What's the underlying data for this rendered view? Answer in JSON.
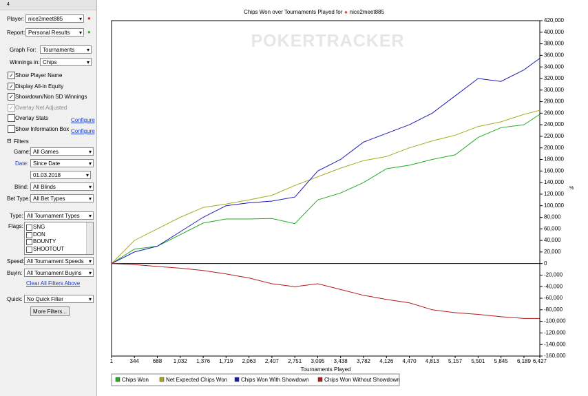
{
  "sidebar": {
    "tab": "4",
    "player_label": "Player:",
    "player": "nice2meet885",
    "report_label": "Report:",
    "report": "Personal Results",
    "graph_for_label": "Graph For:",
    "graph_for": "Tournaments",
    "winnings_label": "Winnings in:",
    "winnings": "Chips",
    "options": [
      {
        "label": "Show Player Name",
        "checked": true
      },
      {
        "label": "Display All-in Equity",
        "checked": true
      },
      {
        "label": "Showdown/Non SD Winnings",
        "checked": true
      },
      {
        "label": "Overlay Net Adjusted",
        "checked": true
      },
      {
        "label": "Overlay Stats",
        "checked": false
      },
      {
        "label": "Show Information Box",
        "checked": false
      }
    ],
    "configure": "Configure",
    "filters_title": "Filters",
    "game_label": "Game:",
    "game": "All Games",
    "date_label": "Date:",
    "date": "Since Date",
    "date_value": "01.03.2018",
    "blind_label": "Blind:",
    "blind": "All Blinds",
    "bet_type_label": "Bet Type:",
    "bet_type": "All Bet Types",
    "type_label": "Type:",
    "type": "All Tournament Types",
    "flags_label": "Flags:",
    "flags": [
      "SNG",
      "DON",
      "BOUNTY",
      "SHOOTOUT"
    ],
    "speed_label": "Speed:",
    "speed": "All Tournament Speeds",
    "buyin_label": "Buyin:",
    "buyin": "All Tournament Buyins",
    "clear_filters": "Clear All Filters Above",
    "quick_label": "Quick:",
    "quick": "No Quick Filter",
    "more_filters": "More Filters..."
  },
  "chart_data": {
    "type": "line",
    "title": "Chips Won over Tournaments Played for",
    "title_player": "nice2meet885",
    "watermark": "POKERTRACKER",
    "xlabel": "Tournaments Played",
    "y2_unit": "%",
    "x": [
      1,
      344,
      688,
      1032,
      1376,
      1719,
      2063,
      2407,
      2751,
      3095,
      3438,
      3782,
      4126,
      4470,
      4813,
      5157,
      5501,
      5845,
      6189,
      6427
    ],
    "series": [
      {
        "name": "Chips Won",
        "color": "#22aa22",
        "values": [
          0,
          25000,
          30000,
          50000,
          70000,
          77000,
          77000,
          78000,
          69000,
          110000,
          122000,
          140000,
          164000,
          170000,
          180000,
          188000,
          218000,
          235000,
          240000,
          258000
        ]
      },
      {
        "name": "Net Expected Chips Won",
        "color": "#a8a820",
        "values": [
          0,
          40000,
          60000,
          80000,
          97000,
          103000,
          110000,
          118000,
          135000,
          150000,
          165000,
          178000,
          185000,
          200000,
          212000,
          222000,
          237000,
          245000,
          258000,
          265000
        ]
      },
      {
        "name": "Chips Won With Showdown",
        "color": "#1a1ab4",
        "values": [
          0,
          20000,
          30000,
          55000,
          80000,
          100000,
          105000,
          108000,
          115000,
          160000,
          180000,
          210000,
          225000,
          240000,
          260000,
          290000,
          320000,
          315000,
          335000,
          355000
        ]
      },
      {
        "name": "Chips Won Without Showdown",
        "color": "#b41a1a",
        "values": [
          0,
          -2000,
          -5000,
          -8000,
          -12000,
          -18000,
          -25000,
          -35000,
          -40000,
          -35000,
          -45000,
          -55000,
          -62000,
          -68000,
          -80000,
          -85000,
          -88000,
          -92000,
          -95000,
          -95000
        ]
      }
    ],
    "xlim": [
      1,
      6427
    ],
    "xticks": [
      1,
      344,
      688,
      {
        "value": 1032,
        "label": "1,032"
      },
      {
        "value": 1376,
        "label": "1,376"
      },
      {
        "value": 1719,
        "label": "1,719"
      },
      {
        "value": 2063,
        "label": "2,063"
      },
      {
        "value": 2407,
        "label": "2,407"
      },
      {
        "value": 2751,
        "label": "2,751"
      },
      {
        "value": 3095,
        "label": "3,095"
      },
      {
        "value": 3438,
        "label": "3,438"
      },
      {
        "value": 3782,
        "label": "3,782"
      },
      {
        "value": 4126,
        "label": "4,126"
      },
      {
        "value": 4470,
        "label": "4,470"
      },
      {
        "value": 4813,
        "label": "4,813"
      },
      {
        "value": 5157,
        "label": "5,157"
      },
      {
        "value": 5501,
        "label": "5,501"
      },
      {
        "value": 5845,
        "label": "5,845"
      },
      {
        "value": 6189,
        "label": "6,189"
      },
      {
        "value": 6427,
        "label": "6,427"
      }
    ],
    "ylim": [
      -160000,
      420000
    ],
    "yticks": [
      {
        "value": -160000,
        "label": "-160,000"
      },
      {
        "value": -140000,
        "label": "-140,000"
      },
      {
        "value": -120000,
        "label": "-120,000"
      },
      {
        "value": -100000,
        "label": "-100,000"
      },
      {
        "value": -80000,
        "label": "-80,000"
      },
      {
        "value": -60000,
        "label": "-60,000"
      },
      {
        "value": -40000,
        "label": "-40,000"
      },
      {
        "value": -20000,
        "label": "-20,000"
      },
      0,
      {
        "value": 20000,
        "label": "20,000"
      },
      {
        "value": 40000,
        "label": "40,000"
      },
      {
        "value": 60000,
        "label": "60,000"
      },
      {
        "value": 80000,
        "label": "80,000"
      },
      {
        "value": 100000,
        "label": "100,000"
      },
      {
        "value": 120000,
        "label": "120,000"
      },
      {
        "value": 140000,
        "label": "140,000"
      },
      {
        "value": 160000,
        "label": "160,000"
      },
      {
        "value": 180000,
        "label": "180,000"
      },
      {
        "value": 200000,
        "label": "200,000"
      },
      {
        "value": 220000,
        "label": "220,000"
      },
      {
        "value": 240000,
        "label": "240,000"
      },
      {
        "value": 260000,
        "label": "260,000"
      },
      {
        "value": 280000,
        "label": "280,000"
      },
      {
        "value": 300000,
        "label": "300,000"
      },
      {
        "value": 320000,
        "label": "320,000"
      },
      {
        "value": 340000,
        "label": "340,000"
      },
      {
        "value": 360000,
        "label": "360,000"
      },
      {
        "value": 380000,
        "label": "380,000"
      },
      {
        "value": 400000,
        "label": "400,000"
      },
      {
        "value": 420000,
        "label": "420,000"
      }
    ],
    "grid": false,
    "zero_line": true
  }
}
